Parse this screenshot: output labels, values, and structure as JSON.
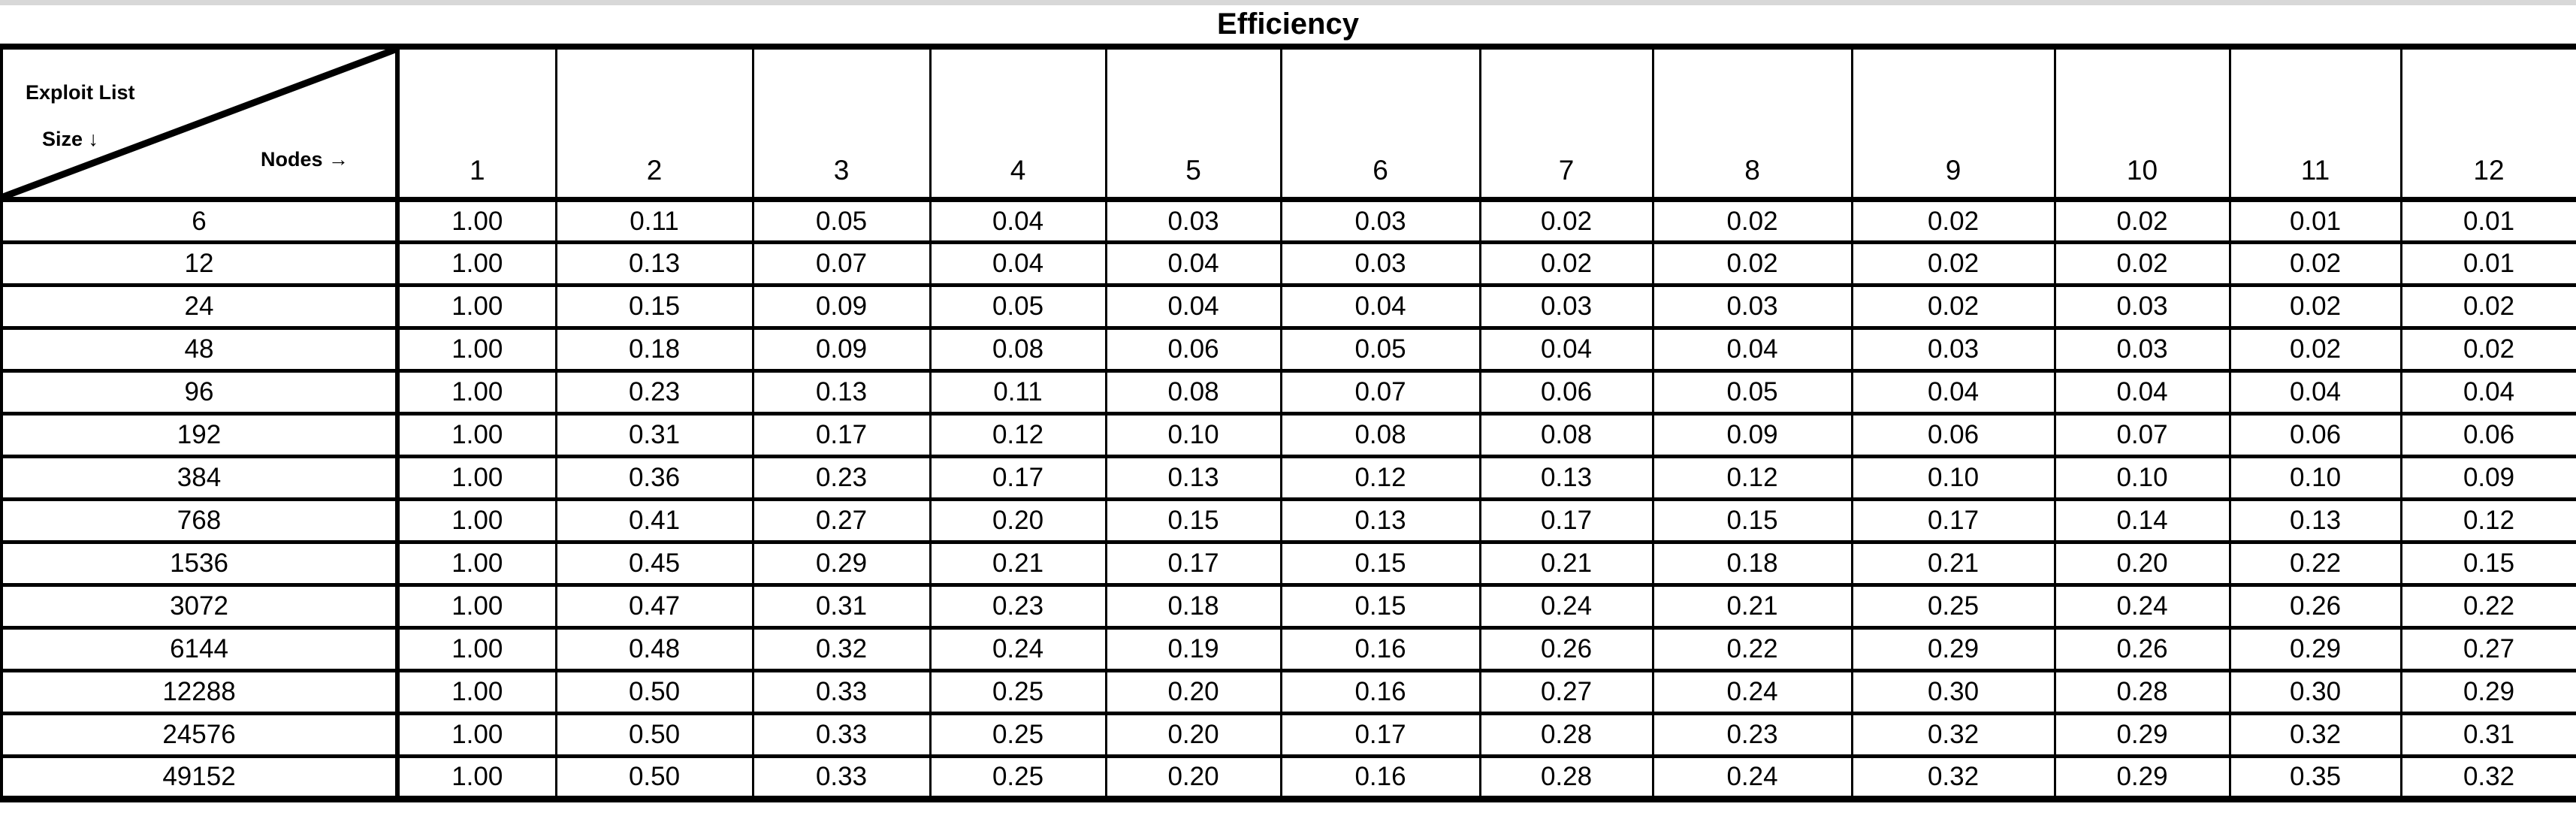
{
  "title": "Efficiency",
  "colors": {
    "border": "#000000",
    "background": "#ffffff",
    "top_strip": "#d8d8d8",
    "text": "#000000"
  },
  "chart_data": {
    "type": "table",
    "title": "Efficiency",
    "corner": {
      "row_axis_label_line1": "Exploit List",
      "row_axis_label_line2": "Size ↓",
      "col_axis_label": "Nodes →"
    },
    "columns": [
      "1",
      "2",
      "3",
      "4",
      "5",
      "6",
      "7",
      "8",
      "9",
      "10",
      "11",
      "12"
    ],
    "rows": [
      {
        "size": "6",
        "values": [
          "1.00",
          "0.11",
          "0.05",
          "0.04",
          "0.03",
          "0.03",
          "0.02",
          "0.02",
          "0.02",
          "0.02",
          "0.01",
          "0.01"
        ]
      },
      {
        "size": "12",
        "values": [
          "1.00",
          "0.13",
          "0.07",
          "0.04",
          "0.04",
          "0.03",
          "0.02",
          "0.02",
          "0.02",
          "0.02",
          "0.02",
          "0.01"
        ]
      },
      {
        "size": "24",
        "values": [
          "1.00",
          "0.15",
          "0.09",
          "0.05",
          "0.04",
          "0.04",
          "0.03",
          "0.03",
          "0.02",
          "0.03",
          "0.02",
          "0.02"
        ]
      },
      {
        "size": "48",
        "values": [
          "1.00",
          "0.18",
          "0.09",
          "0.08",
          "0.06",
          "0.05",
          "0.04",
          "0.04",
          "0.03",
          "0.03",
          "0.02",
          "0.02"
        ]
      },
      {
        "size": "96",
        "values": [
          "1.00",
          "0.23",
          "0.13",
          "0.11",
          "0.08",
          "0.07",
          "0.06",
          "0.05",
          "0.04",
          "0.04",
          "0.04",
          "0.04"
        ]
      },
      {
        "size": "192",
        "values": [
          "1.00",
          "0.31",
          "0.17",
          "0.12",
          "0.10",
          "0.08",
          "0.08",
          "0.09",
          "0.06",
          "0.07",
          "0.06",
          "0.06"
        ]
      },
      {
        "size": "384",
        "values": [
          "1.00",
          "0.36",
          "0.23",
          "0.17",
          "0.13",
          "0.12",
          "0.13",
          "0.12",
          "0.10",
          "0.10",
          "0.10",
          "0.09"
        ]
      },
      {
        "size": "768",
        "values": [
          "1.00",
          "0.41",
          "0.27",
          "0.20",
          "0.15",
          "0.13",
          "0.17",
          "0.15",
          "0.17",
          "0.14",
          "0.13",
          "0.12"
        ]
      },
      {
        "size": "1536",
        "values": [
          "1.00",
          "0.45",
          "0.29",
          "0.21",
          "0.17",
          "0.15",
          "0.21",
          "0.18",
          "0.21",
          "0.20",
          "0.22",
          "0.15"
        ]
      },
      {
        "size": "3072",
        "values": [
          "1.00",
          "0.47",
          "0.31",
          "0.23",
          "0.18",
          "0.15",
          "0.24",
          "0.21",
          "0.25",
          "0.24",
          "0.26",
          "0.22"
        ]
      },
      {
        "size": "6144",
        "values": [
          "1.00",
          "0.48",
          "0.32",
          "0.24",
          "0.19",
          "0.16",
          "0.26",
          "0.22",
          "0.29",
          "0.26",
          "0.29",
          "0.27"
        ]
      },
      {
        "size": "12288",
        "values": [
          "1.00",
          "0.50",
          "0.33",
          "0.25",
          "0.20",
          "0.16",
          "0.27",
          "0.24",
          "0.30",
          "0.28",
          "0.30",
          "0.29"
        ]
      },
      {
        "size": "24576",
        "values": [
          "1.00",
          "0.50",
          "0.33",
          "0.25",
          "0.20",
          "0.17",
          "0.28",
          "0.23",
          "0.32",
          "0.29",
          "0.32",
          "0.31"
        ]
      },
      {
        "size": "49152",
        "values": [
          "1.00",
          "0.50",
          "0.33",
          "0.25",
          "0.20",
          "0.16",
          "0.28",
          "0.24",
          "0.32",
          "0.29",
          "0.35",
          "0.32"
        ]
      }
    ],
    "layout_hints": {
      "legend": "none",
      "grid": "on",
      "header_position": "top",
      "row_header_position": "left"
    }
  }
}
